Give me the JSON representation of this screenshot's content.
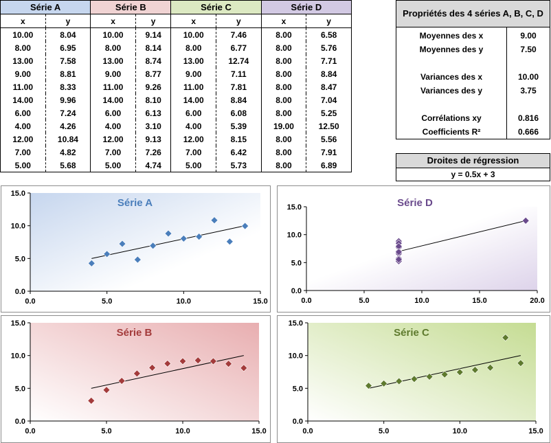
{
  "table": {
    "series_headers": [
      "Série A",
      "Série B",
      "Série C",
      "Série D"
    ],
    "x_label": "x",
    "y_label": "y",
    "rows": [
      [
        "10.00",
        "8.04",
        "10.00",
        "9.14",
        "10.00",
        "7.46",
        "8.00",
        "6.58"
      ],
      [
        "8.00",
        "6.95",
        "8.00",
        "8.14",
        "8.00",
        "6.77",
        "8.00",
        "5.76"
      ],
      [
        "13.00",
        "7.58",
        "13.00",
        "8.74",
        "13.00",
        "12.74",
        "8.00",
        "7.71"
      ],
      [
        "9.00",
        "8.81",
        "9.00",
        "8.77",
        "9.00",
        "7.11",
        "8.00",
        "8.84"
      ],
      [
        "11.00",
        "8.33",
        "11.00",
        "9.26",
        "11.00",
        "7.81",
        "8.00",
        "8.47"
      ],
      [
        "14.00",
        "9.96",
        "14.00",
        "8.10",
        "14.00",
        "8.84",
        "8.00",
        "7.04"
      ],
      [
        "6.00",
        "7.24",
        "6.00",
        "6.13",
        "6.00",
        "6.08",
        "8.00",
        "5.25"
      ],
      [
        "4.00",
        "4.26",
        "4.00",
        "3.10",
        "4.00",
        "5.39",
        "19.00",
        "12.50"
      ],
      [
        "12.00",
        "10.84",
        "12.00",
        "9.13",
        "12.00",
        "8.15",
        "8.00",
        "5.56"
      ],
      [
        "7.00",
        "4.82",
        "7.00",
        "7.26",
        "7.00",
        "6.42",
        "8.00",
        "7.91"
      ],
      [
        "5.00",
        "5.68",
        "5.00",
        "4.74",
        "5.00",
        "5.73",
        "8.00",
        "6.89"
      ]
    ]
  },
  "properties": {
    "title": "Propriétés des 4 séries A, B, C, D",
    "rows": [
      {
        "label": "Moyennes des x",
        "value": "9.00"
      },
      {
        "label": "Moyennes des y",
        "value": "7.50"
      },
      {
        "label": "Variances des x",
        "value": "10.00"
      },
      {
        "label": "Variances des y",
        "value": "3.75"
      },
      {
        "label": "Corrélations xy",
        "value": "0.816"
      },
      {
        "label": "Coefficients R²",
        "value": "0.666"
      }
    ]
  },
  "regression": {
    "title": "Droites de régression",
    "equation": "y = 0.5x + 3"
  },
  "colors": {
    "A": "#4a7ebb",
    "B": "#a33b3b",
    "C": "#5e7a2e",
    "D": "#6a4a8c",
    "line": "#000000"
  },
  "chart_data": [
    {
      "type": "scatter",
      "title": "Série A",
      "color": "#4a7ebb",
      "xlim": [
        0,
        15
      ],
      "ylim": [
        0,
        15
      ],
      "xticks": [
        "0.0",
        "5.0",
        "10.0",
        "15.0"
      ],
      "yticks": [
        "0.0",
        "5.0",
        "10.0",
        "15.0"
      ],
      "x": [
        10,
        8,
        13,
        9,
        11,
        14,
        6,
        4,
        12,
        7,
        5
      ],
      "y": [
        8.04,
        6.95,
        7.58,
        8.81,
        8.33,
        9.96,
        7.24,
        4.26,
        10.84,
        4.82,
        5.68
      ],
      "trendline": {
        "slope": 0.5,
        "intercept": 3,
        "x_range": [
          4,
          14
        ]
      }
    },
    {
      "type": "scatter",
      "title": "Série D",
      "color": "#6a4a8c",
      "xlim": [
        0,
        20
      ],
      "ylim": [
        0,
        15
      ],
      "xticks": [
        "0.0",
        "5.0",
        "10.0",
        "15.0",
        "20.0"
      ],
      "yticks": [
        "0.0",
        "5.0",
        "10.0",
        "15.0"
      ],
      "x": [
        8,
        8,
        8,
        8,
        8,
        8,
        8,
        19,
        8,
        8,
        8
      ],
      "y": [
        6.58,
        5.76,
        7.71,
        8.84,
        8.47,
        7.04,
        5.25,
        12.5,
        5.56,
        7.91,
        6.89
      ],
      "trendline": {
        "slope": 0.5,
        "intercept": 3,
        "x_range": [
          8,
          19
        ]
      }
    },
    {
      "type": "scatter",
      "title": "Série B",
      "color": "#a33b3b",
      "xlim": [
        0,
        15
      ],
      "ylim": [
        0,
        15
      ],
      "xticks": [
        "0.0",
        "5.0",
        "10.0",
        "15.0"
      ],
      "yticks": [
        "0.0",
        "5.0",
        "10.0",
        "15.0"
      ],
      "x": [
        10,
        8,
        13,
        9,
        11,
        14,
        6,
        4,
        12,
        7,
        5
      ],
      "y": [
        9.14,
        8.14,
        8.74,
        8.77,
        9.26,
        8.1,
        6.13,
        3.1,
        9.13,
        7.26,
        4.74
      ],
      "trendline": {
        "slope": 0.5,
        "intercept": 3,
        "x_range": [
          4,
          14
        ]
      }
    },
    {
      "type": "scatter",
      "title": "Série C",
      "color": "#5e7a2e",
      "xlim": [
        0,
        15
      ],
      "ylim": [
        0,
        15
      ],
      "xticks": [
        "0.0",
        "5.0",
        "10.0",
        "15.0"
      ],
      "yticks": [
        "0.0",
        "5.0",
        "10.0",
        "15.0"
      ],
      "x": [
        10,
        8,
        13,
        9,
        11,
        14,
        6,
        4,
        12,
        7,
        5
      ],
      "y": [
        7.46,
        6.77,
        12.74,
        7.11,
        7.81,
        8.84,
        6.08,
        5.39,
        8.15,
        6.42,
        5.73
      ],
      "trendline": {
        "slope": 0.5,
        "intercept": 3,
        "x_range": [
          4,
          14
        ]
      }
    }
  ]
}
